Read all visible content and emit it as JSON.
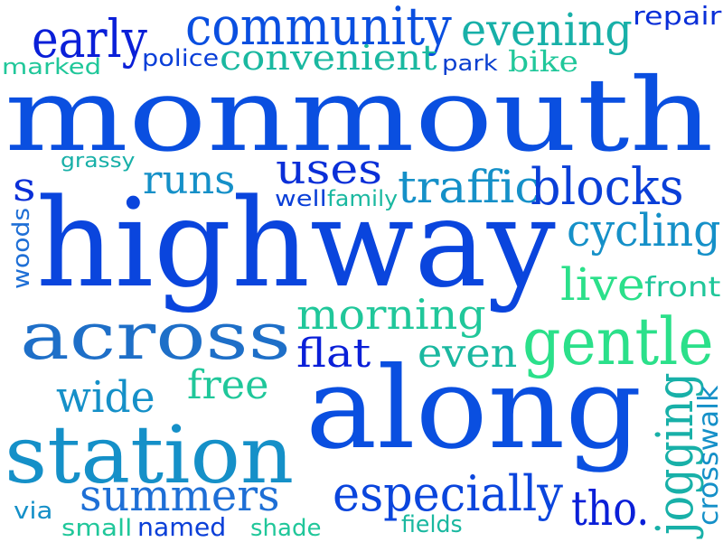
{
  "palette": {
    "deep_blue": "#0a1fd8",
    "blue": "#0a4fe0",
    "mid_blue": "#1e6fd6",
    "teal_blue": "#1590c8",
    "teal": "#18b0a8",
    "sea_green": "#20c79a",
    "green": "#2be08a"
  },
  "words": [
    {
      "id": "monmouth",
      "text": "monmouth",
      "color": "#0a4fe0"
    },
    {
      "id": "highway",
      "text": "highway",
      "color": "#0a45dd"
    },
    {
      "id": "along",
      "text": "along",
      "color": "#0a4fe0"
    },
    {
      "id": "station",
      "text": "station",
      "color": "#1590c8"
    },
    {
      "id": "across",
      "text": "across",
      "color": "#1e6fc8"
    },
    {
      "id": "gentle",
      "text": "gentle",
      "color": "#2be08a"
    },
    {
      "id": "community",
      "text": "community",
      "color": "#0a4fe0"
    },
    {
      "id": "early",
      "text": "early",
      "color": "#0a1fd8"
    },
    {
      "id": "evening",
      "text": "evening",
      "color": "#18b0a8"
    },
    {
      "id": "repair",
      "text": "repair",
      "color": "#0a2fd8"
    },
    {
      "id": "marked",
      "text": "marked",
      "color": "#20c79a"
    },
    {
      "id": "police",
      "text": "police",
      "color": "#0a3fd8"
    },
    {
      "id": "convenient",
      "text": "convenient",
      "color": "#1ab8a0"
    },
    {
      "id": "park",
      "text": "park",
      "color": "#0a3fd0"
    },
    {
      "id": "bike",
      "text": "bike",
      "color": "#20c79a"
    },
    {
      "id": "grassy",
      "text": "grassy",
      "color": "#18b0a8"
    },
    {
      "id": "s",
      "text": "s",
      "color": "#0a2fd8"
    },
    {
      "id": "runs",
      "text": "runs",
      "color": "#1590c8"
    },
    {
      "id": "uses",
      "text": "uses",
      "color": "#0a2fd8"
    },
    {
      "id": "traffic",
      "text": "traffic",
      "color": "#1590c8"
    },
    {
      "id": "blocks",
      "text": "blocks",
      "color": "#0a3fd8"
    },
    {
      "id": "well",
      "text": "well",
      "color": "#0a3fd8"
    },
    {
      "id": "family",
      "text": "family",
      "color": "#1ab8a0"
    },
    {
      "id": "cycling",
      "text": "cycling",
      "color": "#1590c8"
    },
    {
      "id": "woods",
      "text": "woods",
      "color": "#1e6fd6"
    },
    {
      "id": "live",
      "text": "live",
      "color": "#2be08a"
    },
    {
      "id": "front",
      "text": "front",
      "color": "#20c79a"
    },
    {
      "id": "morning",
      "text": "morning",
      "color": "#20c79a"
    },
    {
      "id": "flat",
      "text": "flat",
      "color": "#0a1fd8"
    },
    {
      "id": "even",
      "text": "even",
      "color": "#1ab8a0"
    },
    {
      "id": "wide",
      "text": "wide",
      "color": "#1590c8"
    },
    {
      "id": "free",
      "text": "free",
      "color": "#20c79a"
    },
    {
      "id": "jogging",
      "text": "jogging",
      "color": "#18b0a8"
    },
    {
      "id": "crosswalk",
      "text": "crosswalk",
      "color": "#1590c8"
    },
    {
      "id": "summers",
      "text": "summers",
      "color": "#1e6fd6"
    },
    {
      "id": "especially",
      "text": "especially",
      "color": "#0a45dd"
    },
    {
      "id": "tho",
      "text": "tho.",
      "color": "#0a1fd8"
    },
    {
      "id": "via",
      "text": "via",
      "color": "#1590c8"
    },
    {
      "id": "small",
      "text": "small",
      "color": "#20c79a"
    },
    {
      "id": "named",
      "text": "named",
      "color": "#0a3fd8"
    },
    {
      "id": "shade",
      "text": "shade",
      "color": "#20c79a"
    },
    {
      "id": "fields",
      "text": "fields",
      "color": "#1ab8a0"
    }
  ]
}
